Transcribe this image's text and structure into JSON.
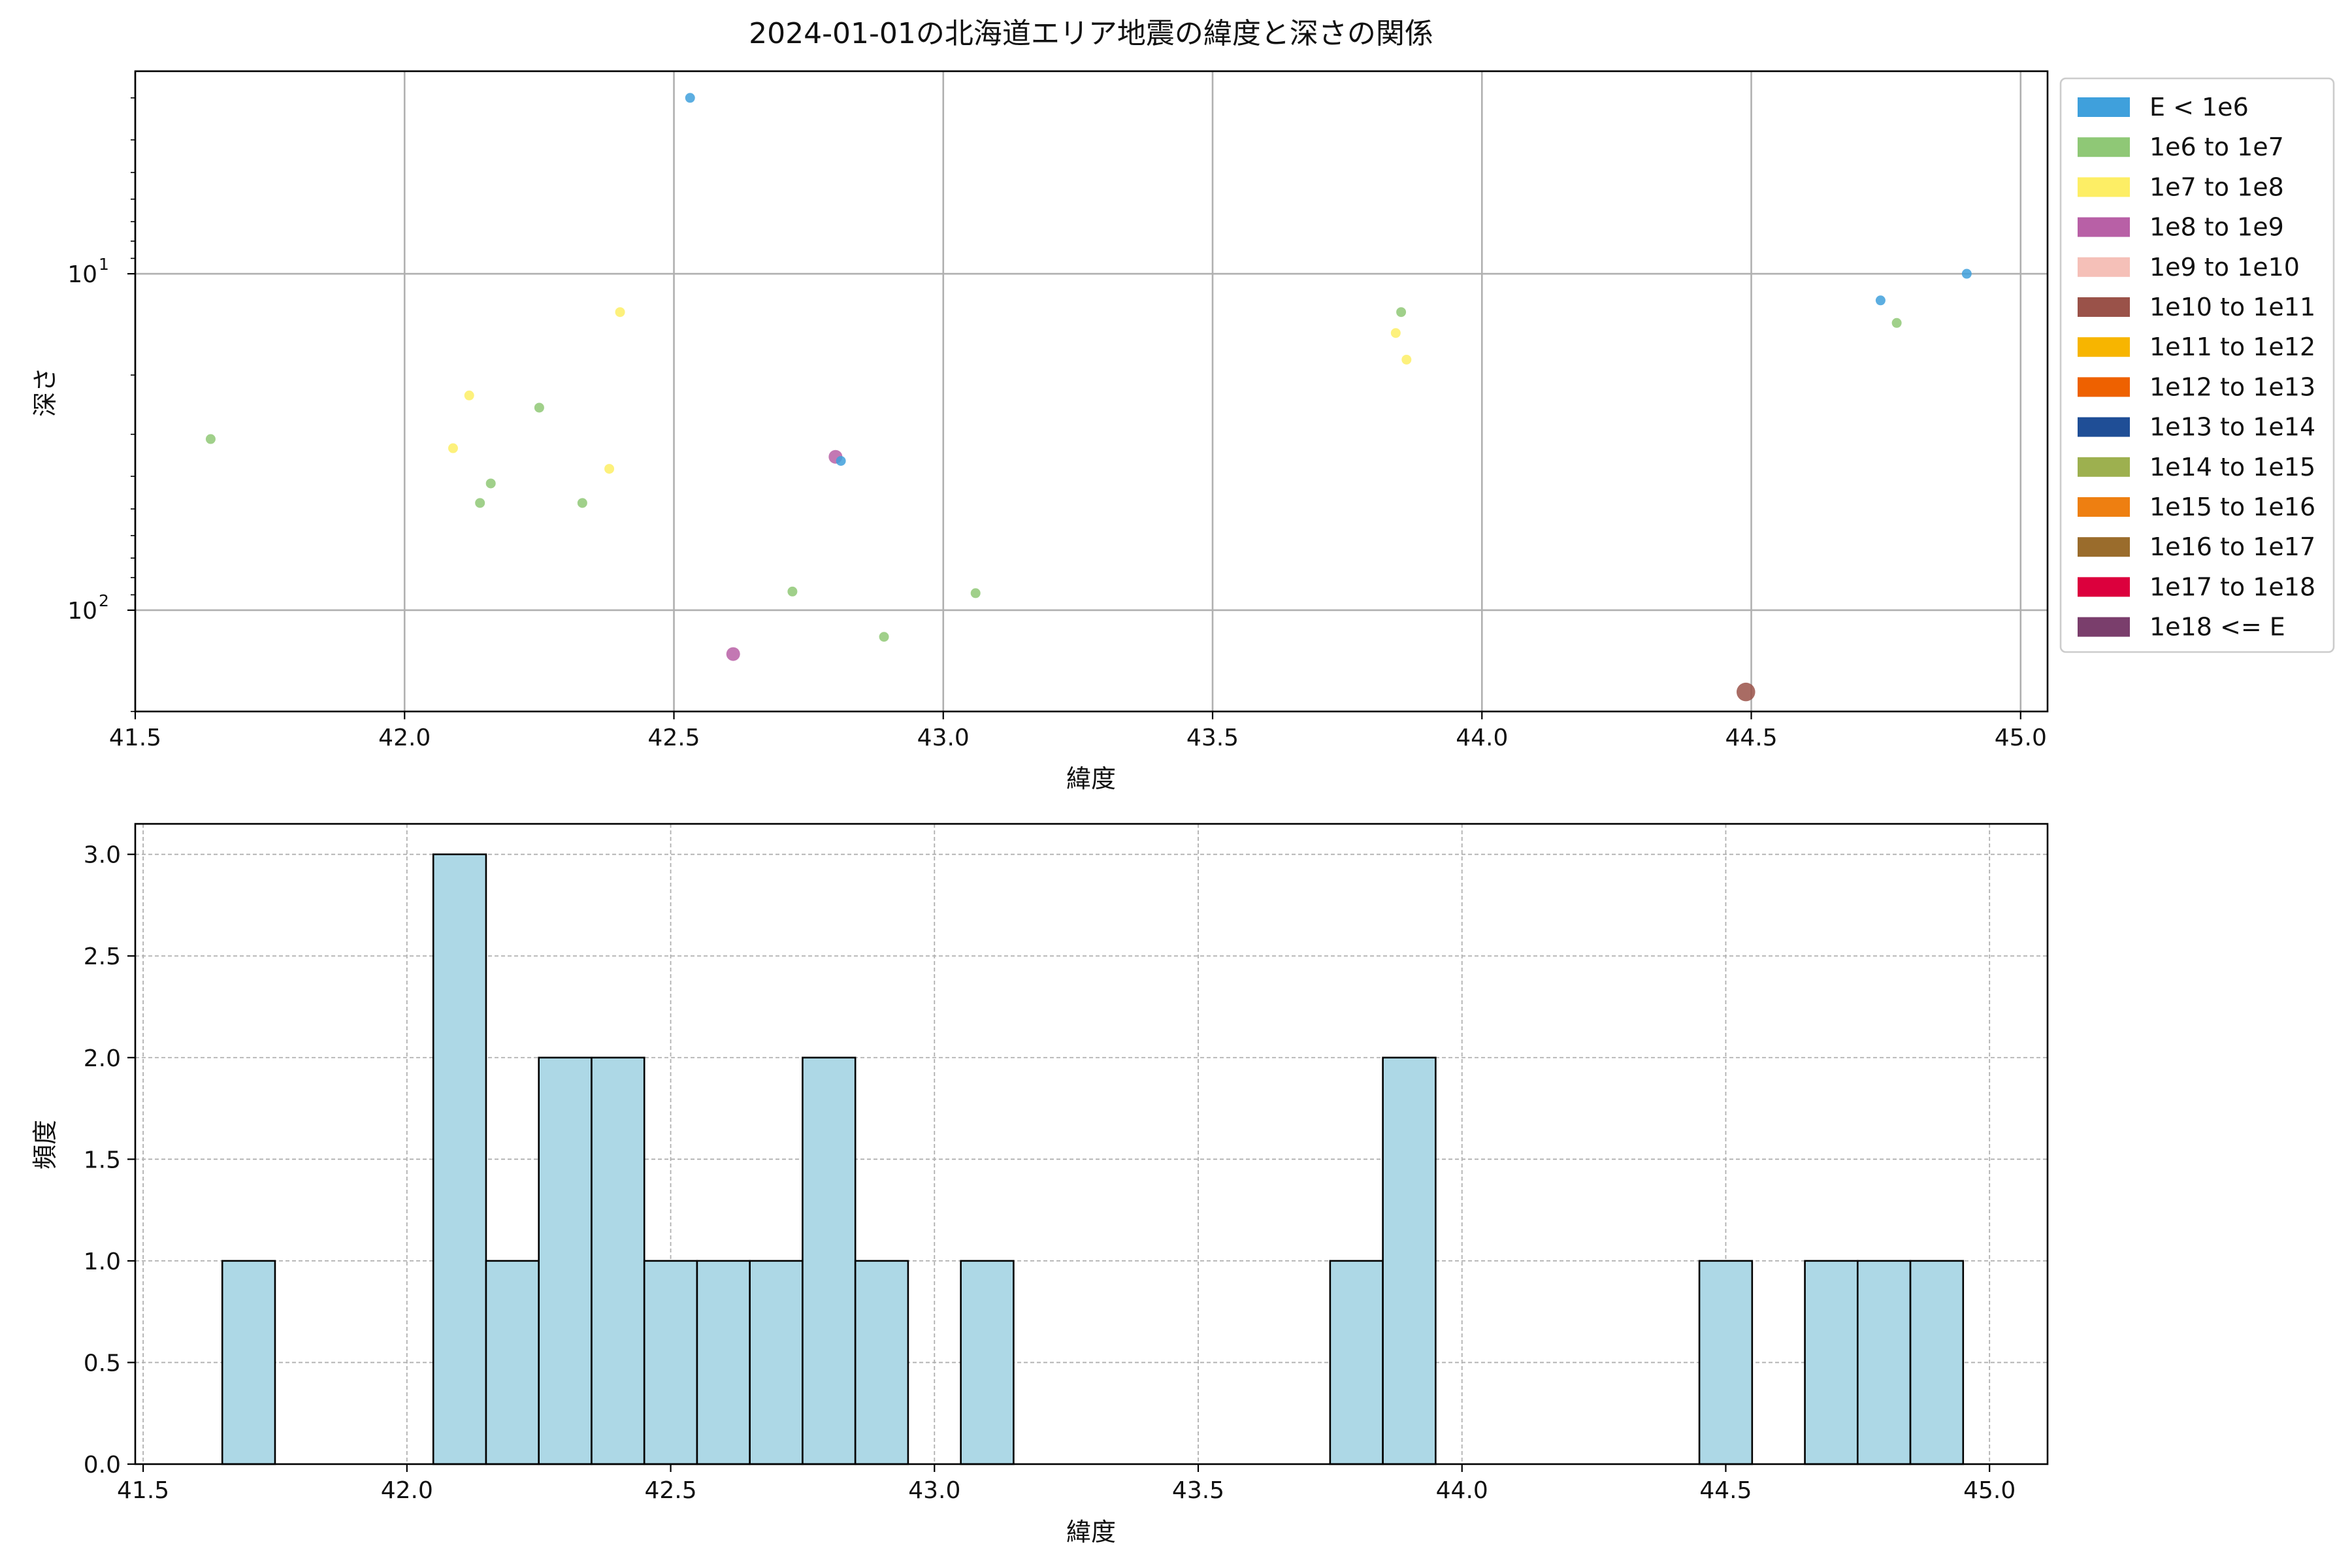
{
  "chart_data": [
    {
      "type": "scatter",
      "title": "2024-01-01の北海道エリア地震の緯度と深さの関係",
      "xlabel": "緯度",
      "ylabel": "深さ",
      "xlim": [
        41.5,
        45.05
      ],
      "ylim": [
        200,
        2.5
      ],
      "yscale": "log",
      "yaxis_inverted": true,
      "xticks": [
        "41.5",
        "42.0",
        "42.5",
        "43.0",
        "43.5",
        "44.0",
        "44.5",
        "45.0"
      ],
      "yticks": [
        {
          "value": 10,
          "base": "10",
          "exp": "1"
        },
        {
          "value": 100,
          "base": "10",
          "exp": "2"
        }
      ],
      "grid": true,
      "legend_position": "outside-right",
      "legend": [
        {
          "label": "E < 1e6",
          "color": "#3fa0dc"
        },
        {
          "label": "1e6 to 1e7",
          "color": "#8fc876"
        },
        {
          "label": "1e7 to 1e8",
          "color": "#fdee65"
        },
        {
          "label": "1e8 to 1e9",
          "color": "#b860a6"
        },
        {
          "label": "1e9 to 1e10",
          "color": "#f5c0b8"
        },
        {
          "label": "1e10 to 1e11",
          "color": "#9a5249"
        },
        {
          "label": "1e11 to 1e12",
          "color": "#f7b500"
        },
        {
          "label": "1e12 to 1e13",
          "color": "#ee6100"
        },
        {
          "label": "1e13 to 1e14",
          "color": "#1f4e96"
        },
        {
          "label": "1e14 to 1e15",
          "color": "#9db04f"
        },
        {
          "label": "1e15 to 1e16",
          "color": "#ee7f11"
        },
        {
          "label": "1e16 to 1e17",
          "color": "#9a6c2c"
        },
        {
          "label": "1e17 to 1e18",
          "color": "#dc003d"
        },
        {
          "label": "1e18 <= E",
          "color": "#7a3e6c"
        }
      ],
      "points": [
        {
          "x": 41.64,
          "y": 31,
          "cls": 1
        },
        {
          "x": 42.09,
          "y": 33,
          "cls": 2
        },
        {
          "x": 42.12,
          "y": 23,
          "cls": 2
        },
        {
          "x": 42.14,
          "y": 48,
          "cls": 1
        },
        {
          "x": 42.16,
          "y": 42,
          "cls": 1
        },
        {
          "x": 42.25,
          "y": 25,
          "cls": 1
        },
        {
          "x": 42.33,
          "y": 48,
          "cls": 1
        },
        {
          "x": 42.38,
          "y": 38,
          "cls": 2
        },
        {
          "x": 42.4,
          "y": 13,
          "cls": 2
        },
        {
          "x": 42.53,
          "y": 3,
          "cls": 0
        },
        {
          "x": 42.61,
          "y": 135,
          "cls": 3,
          "size": 1.4
        },
        {
          "x": 42.72,
          "y": 88,
          "cls": 1
        },
        {
          "x": 42.8,
          "y": 35,
          "cls": 3,
          "size": 1.4
        },
        {
          "x": 42.81,
          "y": 36,
          "cls": 0
        },
        {
          "x": 42.89,
          "y": 120,
          "cls": 1
        },
        {
          "x": 43.06,
          "y": 89,
          "cls": 1
        },
        {
          "x": 43.84,
          "y": 15,
          "cls": 2
        },
        {
          "x": 43.85,
          "y": 13,
          "cls": 1
        },
        {
          "x": 43.86,
          "y": 18,
          "cls": 2
        },
        {
          "x": 44.49,
          "y": 175,
          "cls": 5,
          "size": 1.9
        },
        {
          "x": 44.74,
          "y": 12,
          "cls": 0
        },
        {
          "x": 44.77,
          "y": 14,
          "cls": 1
        },
        {
          "x": 44.9,
          "y": 10,
          "cls": 0
        }
      ]
    },
    {
      "type": "bar",
      "title": "",
      "xlabel": "緯度",
      "ylabel": "頻度",
      "xlim": [
        41.485,
        45.11
      ],
      "ylim": [
        0,
        3.15
      ],
      "xticks": [
        "41.5",
        "42.0",
        "42.5",
        "43.0",
        "43.5",
        "44.0",
        "44.5",
        "45.0"
      ],
      "yticks": [
        "0.0",
        "0.5",
        "1.0",
        "1.5",
        "2.0",
        "2.5",
        "3.0"
      ],
      "grid": true,
      "bar_color": "#add8e6",
      "bin_width": 0.1,
      "bins": [
        {
          "start": 41.65,
          "count": 1
        },
        {
          "start": 42.05,
          "count": 3
        },
        {
          "start": 42.15,
          "count": 1
        },
        {
          "start": 42.25,
          "count": 2
        },
        {
          "start": 42.35,
          "count": 2
        },
        {
          "start": 42.45,
          "count": 1
        },
        {
          "start": 42.55,
          "count": 1
        },
        {
          "start": 42.65,
          "count": 1
        },
        {
          "start": 42.75,
          "count": 2
        },
        {
          "start": 42.85,
          "count": 1
        },
        {
          "start": 43.05,
          "count": 1
        },
        {
          "start": 43.75,
          "count": 1
        },
        {
          "start": 43.85,
          "count": 2
        },
        {
          "start": 44.45,
          "count": 1
        },
        {
          "start": 44.65,
          "count": 1
        },
        {
          "start": 44.75,
          "count": 1
        },
        {
          "start": 44.85,
          "count": 1
        }
      ]
    }
  ]
}
